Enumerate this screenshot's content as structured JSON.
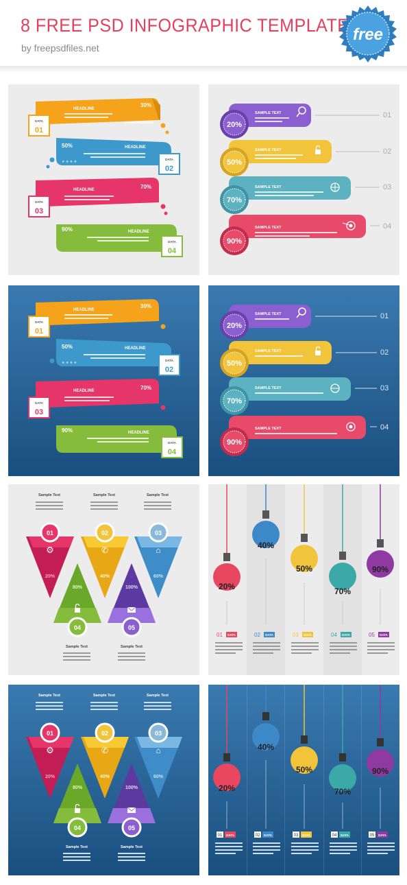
{
  "header": {
    "title": "8 FREE PSD INFOGRAPHIC TEMPLATES",
    "subtitle": "by freepsdfiles.net",
    "badge": "free"
  },
  "colors": {
    "orange": "#f5a31a",
    "blue": "#3d98cc",
    "pink": "#e63568",
    "green": "#86bc3c",
    "purple": "#8b5fd0",
    "yellow": "#f2c43c",
    "teal": "#5cb2c0",
    "red": "#e84a6a",
    "panel_grey": "#ececec",
    "panel_blue": "#2a6398"
  },
  "panel1": {
    "headline": "HEADLINE",
    "data_label": "DATA",
    "rows": [
      {
        "num": "01",
        "pct": "30%"
      },
      {
        "num": "02",
        "pct": "50%"
      },
      {
        "num": "03",
        "pct": "70%"
      },
      {
        "num": "04",
        "pct": "90%"
      }
    ]
  },
  "panel2": {
    "sample_text": "SAMPLE TEXT",
    "rows": [
      {
        "pct": "20%",
        "num": "01",
        "icon": "search-icon"
      },
      {
        "pct": "50%",
        "num": "02",
        "icon": "lock-icon"
      },
      {
        "pct": "70%",
        "num": "03",
        "icon": "basketball-icon"
      },
      {
        "pct": "90%",
        "num": "04",
        "icon": "target-icon"
      }
    ]
  },
  "panel3": {
    "sample_text": "Sample Text",
    "items": [
      {
        "num": "01",
        "pct": "20%",
        "icon": "gear-icon"
      },
      {
        "num": "02",
        "pct": "40%",
        "icon": "phone-icon"
      },
      {
        "num": "03",
        "pct": "60%",
        "icon": "home-icon"
      },
      {
        "num": "04",
        "pct": "80%",
        "icon": "lock-icon"
      },
      {
        "num": "05",
        "pct": "100%",
        "icon": "mail-icon"
      }
    ]
  },
  "panel4": {
    "data_label": "DATA",
    "bulbs": [
      {
        "num": "01",
        "pct": "20%"
      },
      {
        "num": "02",
        "pct": "40%"
      },
      {
        "num": "03",
        "pct": "50%"
      },
      {
        "num": "04",
        "pct": "70%"
      },
      {
        "num": "05",
        "pct": "90%"
      }
    ]
  }
}
